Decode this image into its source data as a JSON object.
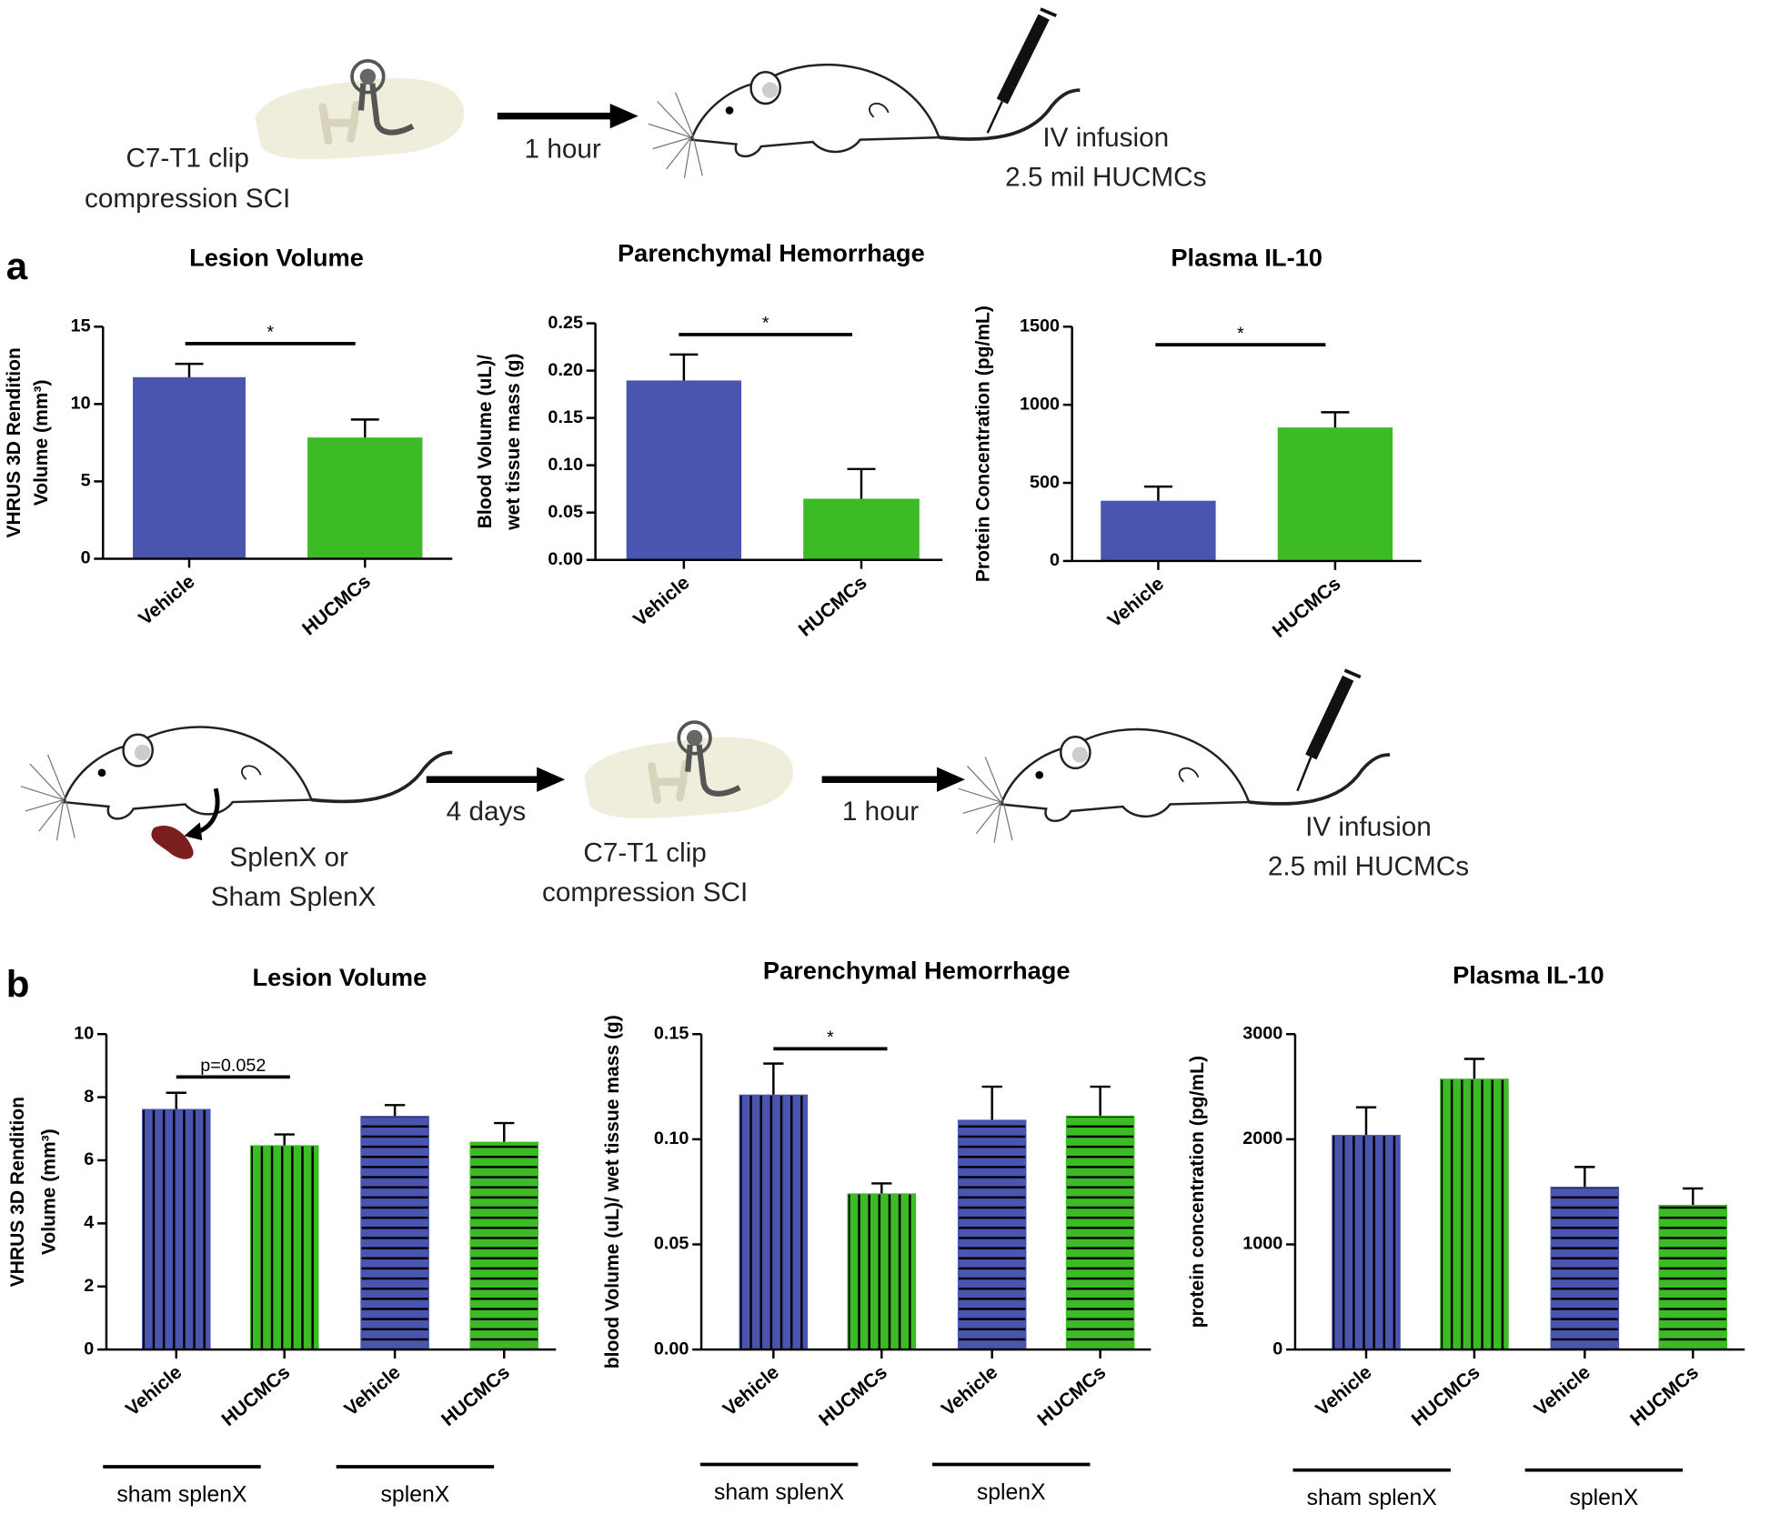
{
  "panel_labels": [
    "a",
    "b"
  ],
  "schematic_a": {
    "injury": [
      "C7-T1 clip",
      "compression SCI"
    ],
    "delay": "1 hour",
    "treatment": [
      "IV infusion",
      "2.5 mil HUCMCs"
    ]
  },
  "schematic_b": {
    "surgery": [
      "SplenX or",
      "Sham SplenX"
    ],
    "delay1": "4 days",
    "injury": [
      "C7-T1 clip",
      "compression SCI"
    ],
    "delay2": "1 hour",
    "treatment": [
      "IV infusion",
      "2.5 mil HUCMCs"
    ]
  },
  "chart_data": [
    {
      "type": "bar",
      "title": "Lesion Volume",
      "y_label": [
        "VHRUS 3D Rendition",
        "Volume (mm³)"
      ],
      "categories": [
        "Vehicle",
        "HUCMCs"
      ],
      "values": [
        11.7,
        7.8
      ],
      "errors": [
        0.9,
        1.2
      ],
      "colors": [
        "#4a55b0",
        "#3dbb26"
      ],
      "fills": [
        "solid",
        "solid"
      ],
      "ylim": [
        0,
        15
      ],
      "yticks": [
        0,
        5,
        10,
        15
      ],
      "annotation": "*"
    },
    {
      "type": "bar",
      "title": "Parenchymal Hemorrhage",
      "y_label": [
        "Blood Volume (uL)/",
        "wet tissue mass (g)"
      ],
      "categories": [
        "Vehicle",
        "HUCMCs"
      ],
      "values": [
        0.189,
        0.064
      ],
      "errors": [
        0.028,
        0.032
      ],
      "colors": [
        "#4a55b0",
        "#3dbb26"
      ],
      "fills": [
        "solid",
        "solid"
      ],
      "ylim": [
        0,
        0.25
      ],
      "yticks": [
        {
          "value": 0,
          "label": "0.00"
        },
        0.05,
        {
          "value": 0.1,
          "label": "0.10"
        },
        0.15,
        {
          "value": 0.2,
          "label": "0.20"
        },
        0.25
      ],
      "annotation": "*"
    },
    {
      "type": "bar",
      "title": "Plasma IL-10",
      "y_label": [
        "Protein Concentration (pg/mL)"
      ],
      "categories": [
        "Vehicle",
        "HUCMCs"
      ],
      "values": [
        382,
        851
      ],
      "errors": [
        94,
        101
      ],
      "colors": [
        "#4a55b0",
        "#3dbb26"
      ],
      "fills": [
        "solid",
        "solid"
      ],
      "ylim": [
        0,
        1500
      ],
      "yticks": [
        0,
        500,
        1000,
        1500
      ],
      "annotation": "*"
    },
    {
      "type": "bar",
      "title": "Lesion Volume",
      "y_label": [
        "VHRUS 3D Rendition",
        "Volume (mm³)"
      ],
      "categories": [
        "Vehicle",
        "HUCMCs",
        "Vehicle",
        "HUCMCs"
      ],
      "values": [
        7.61,
        6.46,
        7.39,
        6.57
      ],
      "errors": [
        0.53,
        0.36,
        0.36,
        0.61
      ],
      "colors": [
        "#4a55b0",
        "#3dbb26",
        "#4a55b0",
        "#3dbb26"
      ],
      "fills": [
        "vertical-stripes",
        "vertical-stripes",
        "horizontal-stripes",
        "horizontal-stripes"
      ],
      "groups": [
        "sham splenX",
        "splenX"
      ],
      "ylim": [
        0,
        10
      ],
      "yticks": [
        0,
        2,
        4,
        6,
        8,
        10
      ],
      "annotation": "p=0.052"
    },
    {
      "type": "bar",
      "title": "Parenchymal Hemorrhage",
      "y_label": [
        "blood Volume (uL)/ wet tissue mass (g)"
      ],
      "categories": [
        "Vehicle",
        "HUCMCs",
        "Vehicle",
        "HUCMCs"
      ],
      "values": [
        0.121,
        0.074,
        0.109,
        0.111
      ],
      "errors": [
        0.015,
        0.005,
        0.016,
        0.014
      ],
      "colors": [
        "#4a55b0",
        "#3dbb26",
        "#4a55b0",
        "#3dbb26"
      ],
      "fills": [
        "vertical-stripes",
        "vertical-stripes",
        "horizontal-stripes",
        "horizontal-stripes"
      ],
      "groups": [
        "sham splenX",
        "splenX"
      ],
      "ylim": [
        0,
        0.15
      ],
      "yticks": [
        {
          "value": 0,
          "label": "0.00"
        },
        0.05,
        {
          "value": 0.1,
          "label": "0.10"
        },
        0.15
      ],
      "annotation": "*"
    },
    {
      "type": "bar",
      "title": "Plasma IL-10",
      "y_label": [
        "protein concentration (pg/mL)"
      ],
      "categories": [
        "Vehicle",
        "HUCMCs",
        "Vehicle",
        "HUCMCs"
      ],
      "values": [
        2036,
        2571,
        1543,
        1371
      ],
      "errors": [
        268,
        193,
        193,
        161
      ],
      "colors": [
        "#4a55b0",
        "#3dbb26",
        "#4a55b0",
        "#3dbb26"
      ],
      "fills": [
        "vertical-stripes",
        "vertical-stripes",
        "horizontal-stripes",
        "horizontal-stripes"
      ],
      "groups": [
        "sham splenX",
        "splenX"
      ],
      "ylim": [
        0,
        3000
      ],
      "yticks": [
        0,
        1000,
        2000,
        3000
      ]
    }
  ]
}
